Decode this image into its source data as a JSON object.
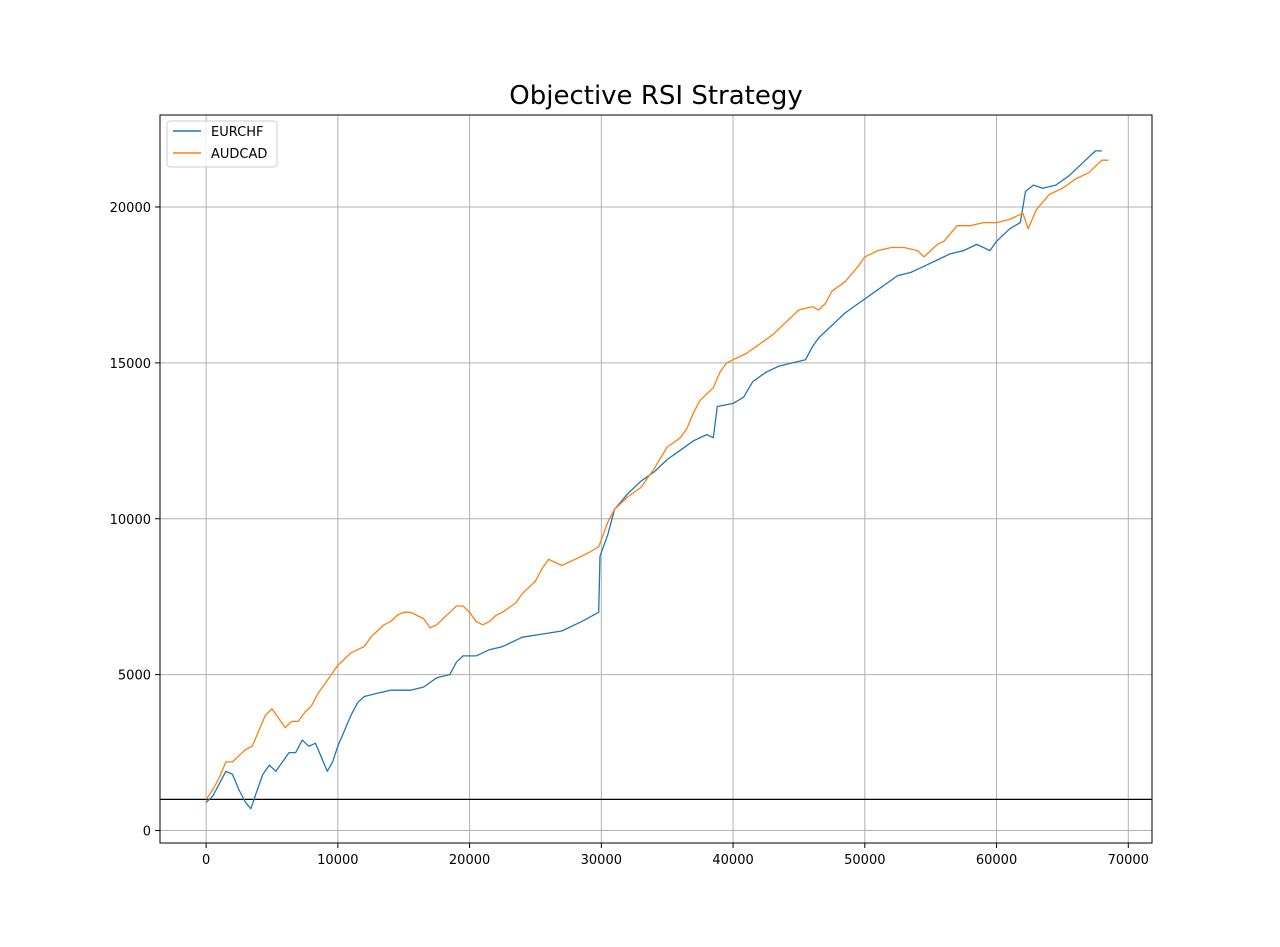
{
  "chart_data": {
    "type": "line",
    "title": "Objective RSI Strategy",
    "xlabel": "",
    "ylabel": "",
    "xlim": [
      -3500,
      71800
    ],
    "ylim": [
      -400,
      22950
    ],
    "x_ticks": [
      0,
      10000,
      20000,
      30000,
      40000,
      50000,
      60000,
      70000
    ],
    "y_ticks": [
      0,
      5000,
      10000,
      15000,
      20000
    ],
    "grid": true,
    "legend": "top-left",
    "reference_line": {
      "y": 1000,
      "color": "#000000"
    },
    "series": [
      {
        "name": "EURCHF",
        "color": "#1f77b4",
        "points": [
          [
            0,
            900
          ],
          [
            500,
            1100
          ],
          [
            1000,
            1500
          ],
          [
            1500,
            1900
          ],
          [
            2000,
            1800
          ],
          [
            2500,
            1300
          ],
          [
            3000,
            900
          ],
          [
            3400,
            700
          ],
          [
            3800,
            1200
          ],
          [
            4300,
            1800
          ],
          [
            4800,
            2100
          ],
          [
            5300,
            1900
          ],
          [
            5800,
            2200
          ],
          [
            6300,
            2500
          ],
          [
            6800,
            2500
          ],
          [
            7300,
            2900
          ],
          [
            7800,
            2700
          ],
          [
            8300,
            2800
          ],
          [
            8800,
            2300
          ],
          [
            9200,
            1900
          ],
          [
            9600,
            2200
          ],
          [
            10000,
            2700
          ],
          [
            10500,
            3200
          ],
          [
            11000,
            3700
          ],
          [
            11500,
            4100
          ],
          [
            12000,
            4300
          ],
          [
            13000,
            4400
          ],
          [
            14000,
            4500
          ],
          [
            15500,
            4500
          ],
          [
            16500,
            4600
          ],
          [
            17500,
            4900
          ],
          [
            18500,
            5000
          ],
          [
            19000,
            5400
          ],
          [
            19500,
            5600
          ],
          [
            20500,
            5600
          ],
          [
            21500,
            5800
          ],
          [
            22500,
            5900
          ],
          [
            24000,
            6200
          ],
          [
            25500,
            6300
          ],
          [
            27000,
            6400
          ],
          [
            28500,
            6700
          ],
          [
            29800,
            7000
          ],
          [
            29900,
            8800
          ],
          [
            30500,
            9500
          ],
          [
            31000,
            10300
          ],
          [
            32000,
            10800
          ],
          [
            33000,
            11200
          ],
          [
            34000,
            11500
          ],
          [
            35000,
            11900
          ],
          [
            36000,
            12200
          ],
          [
            37000,
            12500
          ],
          [
            38000,
            12700
          ],
          [
            38500,
            12600
          ],
          [
            38800,
            13600
          ],
          [
            40000,
            13700
          ],
          [
            40800,
            13900
          ],
          [
            41500,
            14400
          ],
          [
            42500,
            14700
          ],
          [
            43500,
            14900
          ],
          [
            44500,
            15000
          ],
          [
            45500,
            15100
          ],
          [
            46000,
            15500
          ],
          [
            46500,
            15800
          ],
          [
            47500,
            16200
          ],
          [
            48500,
            16600
          ],
          [
            49500,
            16900
          ],
          [
            50500,
            17200
          ],
          [
            51500,
            17500
          ],
          [
            52500,
            17800
          ],
          [
            53500,
            17900
          ],
          [
            54500,
            18100
          ],
          [
            55500,
            18300
          ],
          [
            56500,
            18500
          ],
          [
            57500,
            18600
          ],
          [
            58500,
            18800
          ],
          [
            59500,
            18600
          ],
          [
            60000,
            18900
          ],
          [
            61000,
            19300
          ],
          [
            61800,
            19500
          ],
          [
            62200,
            20500
          ],
          [
            62800,
            20700
          ],
          [
            63500,
            20600
          ],
          [
            64500,
            20700
          ],
          [
            65500,
            21000
          ],
          [
            66500,
            21400
          ],
          [
            67500,
            21800
          ],
          [
            68000,
            21800
          ]
        ]
      },
      {
        "name": "AUDCAD",
        "color": "#ff7f0e",
        "points": [
          [
            0,
            1000
          ],
          [
            500,
            1300
          ],
          [
            1000,
            1700
          ],
          [
            1500,
            2200
          ],
          [
            2000,
            2200
          ],
          [
            2500,
            2400
          ],
          [
            3000,
            2600
          ],
          [
            3500,
            2700
          ],
          [
            4000,
            3200
          ],
          [
            4500,
            3700
          ],
          [
            5000,
            3900
          ],
          [
            5500,
            3600
          ],
          [
            6000,
            3300
          ],
          [
            6500,
            3500
          ],
          [
            7000,
            3500
          ],
          [
            7500,
            3800
          ],
          [
            8000,
            4000
          ],
          [
            8500,
            4400
          ],
          [
            9000,
            4700
          ],
          [
            9500,
            5000
          ],
          [
            10000,
            5300
          ],
          [
            10500,
            5500
          ],
          [
            11000,
            5700
          ],
          [
            11500,
            5800
          ],
          [
            12000,
            5900
          ],
          [
            12500,
            6200
          ],
          [
            13000,
            6400
          ],
          [
            13500,
            6600
          ],
          [
            14000,
            6700
          ],
          [
            14500,
            6900
          ],
          [
            15000,
            7000
          ],
          [
            15500,
            7000
          ],
          [
            16500,
            6800
          ],
          [
            17000,
            6500
          ],
          [
            17500,
            6600
          ],
          [
            18000,
            6800
          ],
          [
            18500,
            7000
          ],
          [
            19000,
            7200
          ],
          [
            19500,
            7200
          ],
          [
            20000,
            7000
          ],
          [
            20500,
            6700
          ],
          [
            21000,
            6600
          ],
          [
            21500,
            6700
          ],
          [
            22000,
            6900
          ],
          [
            22500,
            7000
          ],
          [
            23500,
            7300
          ],
          [
            24000,
            7600
          ],
          [
            24500,
            7800
          ],
          [
            25000,
            8000
          ],
          [
            25500,
            8400
          ],
          [
            26000,
            8700
          ],
          [
            27000,
            8500
          ],
          [
            28000,
            8700
          ],
          [
            29000,
            8900
          ],
          [
            29800,
            9100
          ],
          [
            30500,
            9900
          ],
          [
            31000,
            10300
          ],
          [
            32000,
            10700
          ],
          [
            33000,
            11000
          ],
          [
            34000,
            11600
          ],
          [
            35000,
            12300
          ],
          [
            36000,
            12600
          ],
          [
            36500,
            12900
          ],
          [
            37000,
            13400
          ],
          [
            37500,
            13800
          ],
          [
            38000,
            14000
          ],
          [
            38500,
            14200
          ],
          [
            39000,
            14700
          ],
          [
            39500,
            15000
          ],
          [
            40000,
            15100
          ],
          [
            41000,
            15300
          ],
          [
            42000,
            15600
          ],
          [
            43000,
            15900
          ],
          [
            44000,
            16300
          ],
          [
            45000,
            16700
          ],
          [
            46000,
            16800
          ],
          [
            46500,
            16700
          ],
          [
            47000,
            16900
          ],
          [
            47500,
            17300
          ],
          [
            48500,
            17600
          ],
          [
            49500,
            18100
          ],
          [
            50000,
            18400
          ],
          [
            51000,
            18600
          ],
          [
            52000,
            18700
          ],
          [
            53000,
            18700
          ],
          [
            54000,
            18600
          ],
          [
            54500,
            18400
          ],
          [
            55000,
            18600
          ],
          [
            55500,
            18800
          ],
          [
            56000,
            18900
          ],
          [
            57000,
            19400
          ],
          [
            58000,
            19400
          ],
          [
            59000,
            19500
          ],
          [
            60000,
            19500
          ],
          [
            61000,
            19600
          ],
          [
            62000,
            19800
          ],
          [
            62400,
            19300
          ],
          [
            63000,
            19900
          ],
          [
            64000,
            20400
          ],
          [
            65000,
            20600
          ],
          [
            66000,
            20900
          ],
          [
            67000,
            21100
          ],
          [
            68000,
            21500
          ],
          [
            68500,
            21500
          ]
        ]
      }
    ]
  }
}
